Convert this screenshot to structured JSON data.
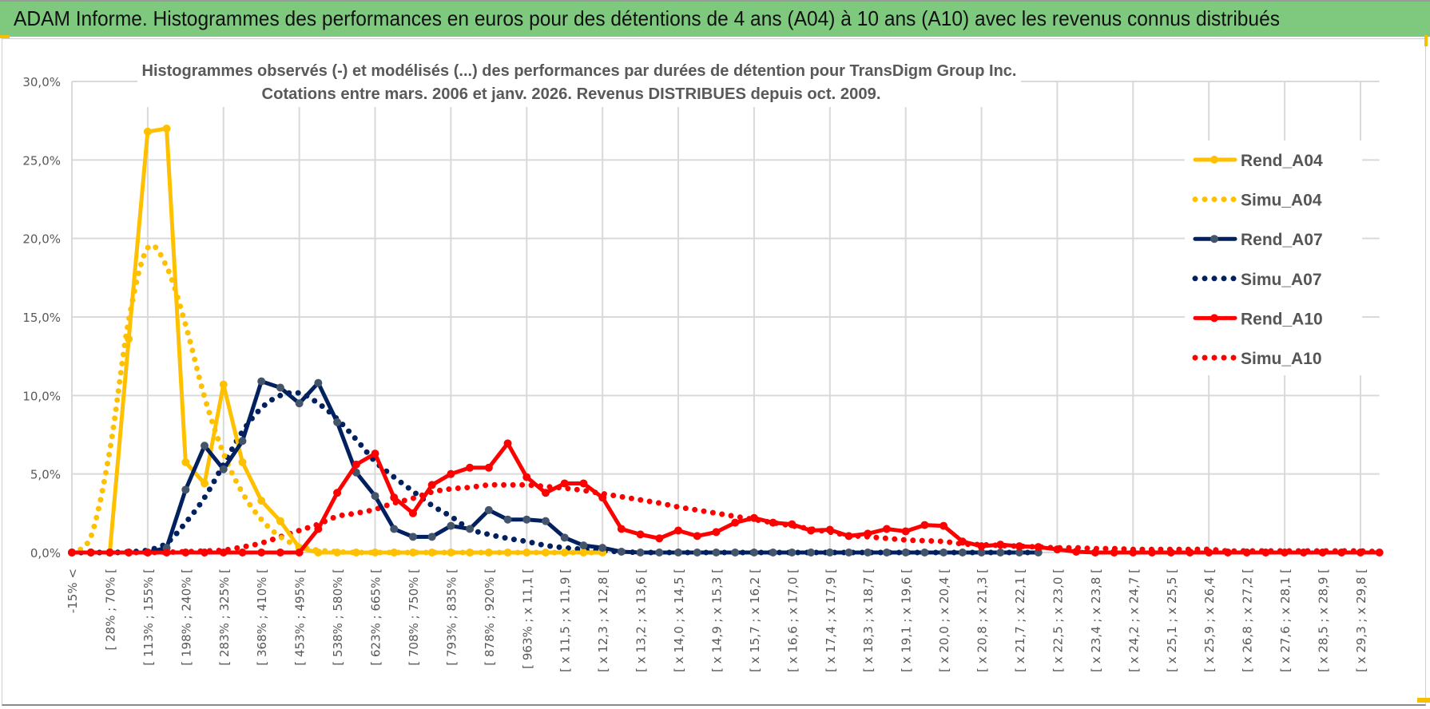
{
  "header": {
    "title": "ADAM Informe. Histogrammes des performances en euros pour des détentions de 4 ans (A04) à 10 ans (A10) avec les revenus connus distribués"
  },
  "chart_data": {
    "type": "line",
    "title": "Histogrammes observés (-) et modélisés (...) des performances par durées de détention pour TransDigm Group Inc.",
    "subtitle": "Cotations entre mars. 2006 et janv. 2026. Revenus DISTRIBUES depuis oct. 2009.",
    "xlabel": "",
    "ylabel": "",
    "ylim": [
      0,
      30
    ],
    "y_ticks": [
      "0,0%",
      "5,0%",
      "10,0%",
      "15,0%",
      "20,0%",
      "25,0%",
      "30,0%"
    ],
    "y_tick_values": [
      0,
      5,
      10,
      15,
      20,
      25,
      30
    ],
    "category_count": 70,
    "label_every": 2,
    "x_tick_labels": [
      "-15% <",
      "[ 28% ; 70% [",
      "[ 113% ; 155% [",
      "[ 198% ; 240% [",
      "[ 283% ; 325% [",
      "[ 368% ; 410% [",
      "[ 453% ; 495% [",
      "[ 538% ; 580% [",
      "[ 623% ; 665% [",
      "[ 708% ; 750% [",
      "[ 793% ; 835% [",
      "[ 878% ; 920% [",
      "[ 963% ; x 11,1 [",
      "[ x 11,5 ; x 11,9 [",
      "[ x 12,3 ; x 12,8 [",
      "[ x 13,2 ; x 13,6 [",
      "[ x 14,0 ; x 14,5 [",
      "[ x 14,9 ; x 15,3 [",
      "[ x 15,7 ; x 16,2 [",
      "[ x 16,6 ; x 17,0 [",
      "[ x 17,4 ; x 17,9 [",
      "[ x 18,3 ; x 18,7 [",
      "[ x 19,1 ; x 19,6 [",
      "[ x 20,0 ; x 20,4 [",
      "[ x 20,8 ; x 21,3 [",
      "[ x 21,7 ; x 22,1 [",
      "[ x 22,5 ; x 23,0 [",
      "[ x 23,4 ; x 23,8 [",
      "[ x 24,2 ; x 24,7 [",
      "[ x 25,1 ; x 25,5 [",
      "[ x 25,9 ; x 26,4 [",
      "[ x 26,8 ; x 27,2 [",
      "[ x 27,6 ; x 28,1 [",
      "[ x 28,5 ; x 28,9 [",
      "[ x 29,3 ; x 29,8 ["
    ],
    "grid": true,
    "legend_position": "right",
    "series": [
      {
        "name": "Simu_A10",
        "style": "dotted",
        "color": "#ff0000",
        "values": [
          0,
          0,
          0,
          0,
          0,
          0.02,
          0.05,
          0.1,
          0.15,
          0.35,
          0.6,
          1.0,
          1.4,
          1.8,
          2.3,
          2.5,
          2.75,
          3.15,
          3.45,
          3.85,
          4.05,
          4.15,
          4.3,
          4.3,
          4.3,
          4.2,
          4.1,
          3.95,
          3.75,
          3.55,
          3.35,
          3.15,
          2.9,
          2.7,
          2.5,
          2.3,
          2.1,
          1.9,
          1.7,
          1.5,
          1.3,
          1.1,
          1.0,
          0.9,
          0.8,
          0.75,
          0.7,
          0.55,
          0.5,
          0.45,
          0.4,
          0.35,
          0.3,
          0.3,
          0.25,
          0.25,
          0.2,
          0.2,
          0.2,
          0.2,
          0.2,
          0.1,
          0.1,
          0.1,
          0.1,
          0.1,
          0.1,
          0.1,
          0.1,
          0.05
        ]
      },
      {
        "name": "Simu_A07",
        "style": "dotted",
        "color": "#002060",
        "values": [
          0,
          0,
          0,
          0.05,
          0.15,
          0.6,
          1.9,
          3.5,
          5.6,
          7.7,
          9.2,
          10.0,
          10.15,
          9.5,
          8.5,
          7.2,
          5.8,
          4.8,
          3.9,
          3.0,
          2.3,
          1.5,
          1.15,
          0.9,
          0.7,
          0.45,
          0.3,
          0.2,
          0.1,
          0.05,
          0,
          0,
          0,
          0,
          0,
          0,
          0,
          0,
          0,
          0,
          0,
          0,
          0,
          0,
          0,
          0,
          0,
          0,
          0,
          0,
          0,
          0
        ]
      },
      {
        "name": "Simu_A04",
        "style": "dotted",
        "color": "#ffc000",
        "values": [
          0,
          1.0,
          6.5,
          14.8,
          19.4,
          18.2,
          14.5,
          9.9,
          6.3,
          3.8,
          2.1,
          1.0,
          0.4,
          0.15,
          0.05,
          0,
          0,
          0,
          0,
          0,
          0,
          0,
          0,
          0,
          0,
          0,
          0,
          0,
          0
        ]
      },
      {
        "name": "Rend_A04",
        "style": "solid",
        "color": "#ffc000",
        "marker_color": "#ffc000",
        "values": [
          0,
          0,
          0,
          13.6,
          26.8,
          27.0,
          5.75,
          4.4,
          10.7,
          5.75,
          3.3,
          2.0,
          0.3,
          0,
          0,
          0,
          0,
          0,
          0,
          0,
          0,
          0,
          0,
          0,
          0,
          0,
          0,
          0,
          0
        ]
      },
      {
        "name": "Rend_A07",
        "style": "solid",
        "color": "#002060",
        "marker_color": "#44546a",
        "values": [
          0,
          0,
          0,
          0,
          0,
          0.3,
          4.0,
          6.8,
          5.3,
          7.1,
          10.9,
          10.5,
          9.5,
          10.8,
          8.3,
          5.1,
          3.6,
          1.5,
          1.0,
          1.0,
          1.7,
          1.5,
          2.7,
          2.1,
          2.1,
          2.0,
          0.95,
          0.45,
          0.3,
          0.05,
          0,
          0,
          0,
          0,
          0,
          0,
          0,
          0,
          0,
          0,
          0,
          0,
          0,
          0,
          0,
          0,
          0,
          0,
          0,
          0,
          0,
          0
        ]
      },
      {
        "name": "Rend_A10",
        "style": "solid",
        "color": "#ff0000",
        "marker_color": "#ff0000",
        "values": [
          0,
          0,
          0,
          0,
          0,
          0,
          0,
          0,
          0,
          0,
          0,
          0,
          0,
          1.5,
          3.8,
          5.6,
          6.3,
          3.5,
          2.5,
          4.3,
          5.0,
          5.4,
          5.4,
          6.95,
          4.8,
          3.8,
          4.4,
          4.4,
          3.5,
          1.5,
          1.15,
          0.9,
          1.4,
          1.05,
          1.3,
          1.9,
          2.2,
          1.9,
          1.8,
          1.4,
          1.45,
          1.05,
          1.2,
          1.5,
          1.35,
          1.75,
          1.7,
          0.7,
          0.4,
          0.5,
          0.4,
          0.35,
          0.2,
          0.05,
          0,
          0,
          0,
          0,
          0,
          0,
          0,
          0,
          0,
          0,
          0,
          0,
          0,
          0,
          0,
          0
        ]
      }
    ],
    "legend": [
      "Rend_A04",
      "Simu_A04",
      "Rend_A07",
      "Simu_A07",
      "Rend_A10",
      "Simu_A10"
    ]
  }
}
